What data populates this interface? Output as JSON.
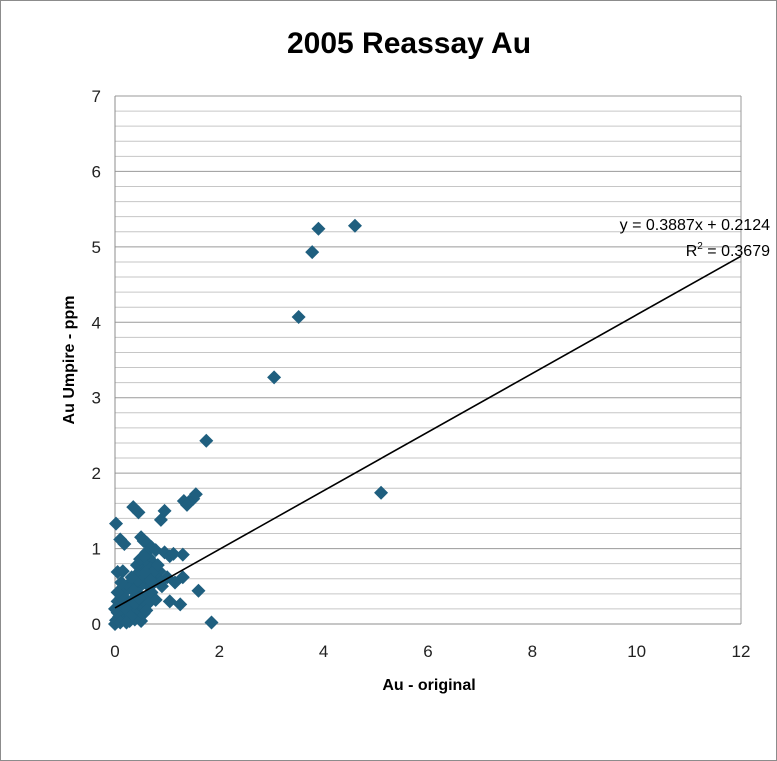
{
  "chart_data": {
    "type": "scatter",
    "title": "2005 Reassay Au",
    "xlabel": "Au - original",
    "ylabel": "Au  Umpire - ppm",
    "xlim": [
      0,
      12
    ],
    "ylim": [
      0,
      7
    ],
    "x_ticks": [
      "0",
      "2",
      "4",
      "6",
      "8",
      "10",
      "12"
    ],
    "y_ticks": [
      "0",
      "1",
      "2",
      "3",
      "4",
      "5",
      "6",
      "7"
    ],
    "y_minor_step": 0.2,
    "grid": "horizontal",
    "marker": "diamond",
    "marker_color": "#1f5f7f",
    "trend_color": "#000000",
    "trendline": {
      "slope": 0.3887,
      "intercept": 0.2124,
      "equation": "y = 0.3887x + 0.2124",
      "r2_prefix": "R",
      "r2_sup": "2",
      "r2_value": " = 0.3679"
    },
    "points": [
      [
        4.6,
        5.28
      ],
      [
        3.9,
        5.24
      ],
      [
        3.78,
        4.93
      ],
      [
        3.52,
        4.07
      ],
      [
        3.05,
        3.27
      ],
      [
        1.75,
        2.43
      ],
      [
        5.1,
        1.74
      ],
      [
        1.55,
        1.72
      ],
      [
        1.5,
        1.66
      ],
      [
        1.42,
        1.62
      ],
      [
        1.32,
        1.63
      ],
      [
        1.38,
        1.58
      ],
      [
        0.35,
        1.55
      ],
      [
        0.45,
        1.48
      ],
      [
        0.95,
        1.5
      ],
      [
        0.88,
        1.38
      ],
      [
        0.02,
        1.33
      ],
      [
        0.1,
        1.12
      ],
      [
        0.18,
        1.06
      ],
      [
        0.5,
        1.15
      ],
      [
        0.55,
        1.1
      ],
      [
        0.62,
        1.07
      ],
      [
        0.7,
        1.02
      ],
      [
        0.78,
        0.98
      ],
      [
        0.95,
        0.95
      ],
      [
        1.05,
        0.9
      ],
      [
        1.3,
        0.92
      ],
      [
        1.12,
        0.93
      ],
      [
        0.05,
        0.69
      ],
      [
        0.15,
        0.7
      ],
      [
        1.6,
        0.44
      ],
      [
        1.25,
        0.26
      ],
      [
        1.05,
        0.3
      ],
      [
        1.85,
        0.02
      ],
      [
        0.5,
        0.04
      ],
      [
        1.3,
        0.62
      ],
      [
        1.15,
        0.55
      ],
      [
        1.0,
        0.62
      ],
      [
        0.85,
        0.7
      ],
      [
        0.2,
        0.45
      ],
      [
        0.6,
        0.95
      ],
      [
        0.65,
        0.88
      ],
      [
        0.72,
        0.82
      ],
      [
        0.58,
        0.78
      ],
      [
        0.5,
        0.72
      ],
      [
        0.42,
        0.66
      ],
      [
        0.68,
        0.74
      ],
      [
        0.8,
        0.62
      ],
      [
        0.75,
        0.55
      ],
      [
        0.9,
        0.5
      ],
      [
        0.62,
        0.52
      ],
      [
        0.55,
        0.6
      ],
      [
        0.48,
        0.5
      ],
      [
        0.4,
        0.56
      ],
      [
        0.32,
        0.48
      ],
      [
        0.45,
        0.4
      ],
      [
        0.6,
        0.36
      ],
      [
        0.7,
        0.42
      ],
      [
        0.78,
        0.32
      ],
      [
        0.52,
        0.3
      ],
      [
        0.38,
        0.34
      ],
      [
        0.3,
        0.3
      ],
      [
        0.22,
        0.32
      ],
      [
        0.28,
        0.22
      ],
      [
        0.4,
        0.24
      ],
      [
        0.5,
        0.2
      ],
      [
        0.62,
        0.26
      ],
      [
        0.55,
        0.14
      ],
      [
        0.45,
        0.12
      ],
      [
        0.35,
        0.16
      ],
      [
        0.25,
        0.12
      ],
      [
        0.15,
        0.18
      ],
      [
        0.1,
        0.25
      ],
      [
        0.05,
        0.3
      ],
      [
        0.08,
        0.1
      ],
      [
        0.18,
        0.06
      ],
      [
        0.28,
        0.04
      ],
      [
        0.38,
        0.06
      ],
      [
        0.02,
        0.05
      ],
      [
        0.05,
        0.15
      ],
      [
        0.12,
        0.35
      ],
      [
        0.2,
        0.2
      ],
      [
        0.3,
        0.1
      ],
      [
        0.0,
        0.0
      ],
      [
        0.1,
        0.02
      ],
      [
        0.22,
        0.02
      ],
      [
        0.15,
        0.4
      ],
      [
        0.25,
        0.52
      ],
      [
        0.35,
        0.44
      ],
      [
        0.65,
        0.64
      ],
      [
        0.72,
        0.68
      ],
      [
        0.82,
        0.78
      ],
      [
        0.88,
        0.56
      ],
      [
        0.58,
        0.68
      ],
      [
        0.68,
        0.58
      ],
      [
        0.42,
        0.78
      ],
      [
        0.48,
        0.86
      ],
      [
        0.55,
        0.9
      ],
      [
        0.0,
        0.2
      ],
      [
        0.6,
        0.18
      ],
      [
        0.05,
        0.42
      ],
      [
        0.12,
        0.55
      ],
      [
        0.32,
        0.62
      ],
      [
        0.38,
        0.28
      ],
      [
        0.46,
        0.34
      ]
    ]
  }
}
